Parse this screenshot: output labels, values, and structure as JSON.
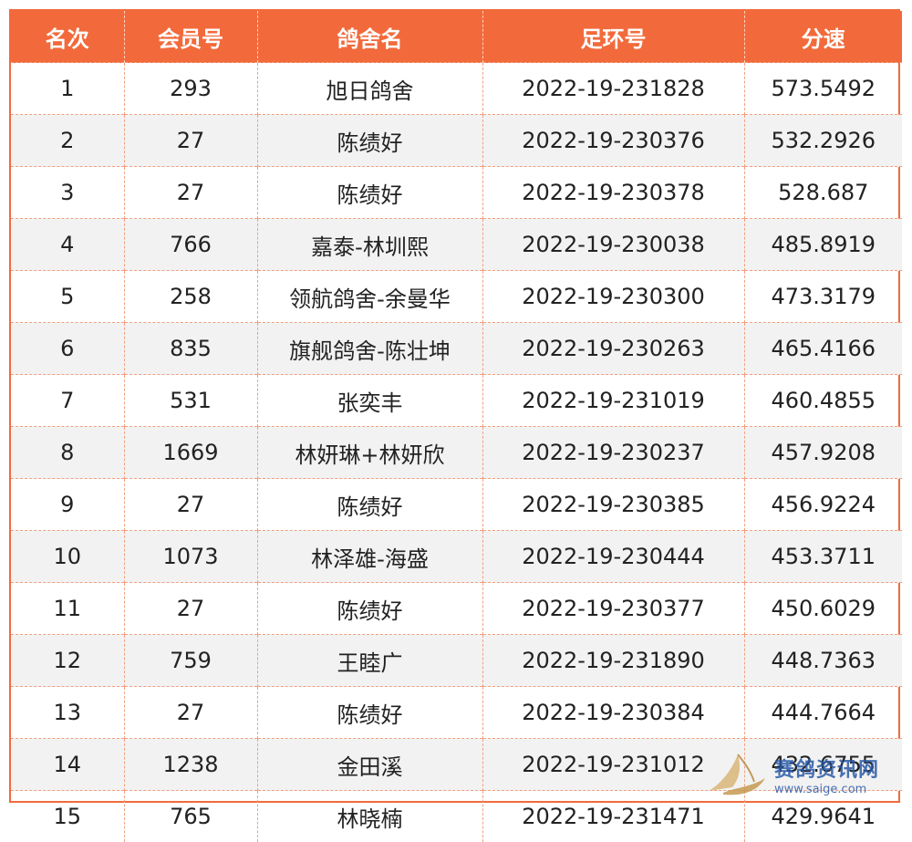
{
  "table": {
    "headers": [
      "名次",
      "会员号",
      "鸽舍名",
      "足环号",
      "分速"
    ],
    "rows": [
      [
        "1",
        "293",
        "旭日鸽舍",
        "2022-19-231828",
        "573.5492"
      ],
      [
        "2",
        "27",
        "陈绩好",
        "2022-19-230376",
        "532.2926"
      ],
      [
        "3",
        "27",
        "陈绩好",
        "2022-19-230378",
        "528.687"
      ],
      [
        "4",
        "766",
        "嘉泰-林圳熙",
        "2022-19-230038",
        "485.8919"
      ],
      [
        "5",
        "258",
        "领航鸽舍-余曼华",
        "2022-19-230300",
        "473.3179"
      ],
      [
        "6",
        "835",
        "旗舰鸽舍-陈壮坤",
        "2022-19-230263",
        "465.4166"
      ],
      [
        "7",
        "531",
        "张奕丰",
        "2022-19-231019",
        "460.4855"
      ],
      [
        "8",
        "1669",
        "林妍琳+林妍欣",
        "2022-19-230237",
        "457.9208"
      ],
      [
        "9",
        "27",
        "陈绩好",
        "2022-19-230385",
        "456.9224"
      ],
      [
        "10",
        "1073",
        "林泽雄-海盛",
        "2022-19-230444",
        "453.3711"
      ],
      [
        "11",
        "27",
        "陈绩好",
        "2022-19-230377",
        "450.6029"
      ],
      [
        "12",
        "759",
        "王睦广",
        "2022-19-231890",
        "448.7363"
      ],
      [
        "13",
        "27",
        "陈绩好",
        "2022-19-230384",
        "444.7664"
      ],
      [
        "14",
        "1238",
        "金田溪",
        "2022-19-231012",
        "432.6755"
      ],
      [
        "15",
        "765",
        "林晓楠",
        "2022-19-231471",
        "429.9641"
      ]
    ]
  },
  "watermark": {
    "name": "赛鸽资讯网",
    "url": "www.saige.com"
  },
  "colors": {
    "header_bg": "#f26a3b",
    "header_text": "#ffffff",
    "stripe": "#f2f2f2",
    "watermark": "#2a5aa8"
  }
}
